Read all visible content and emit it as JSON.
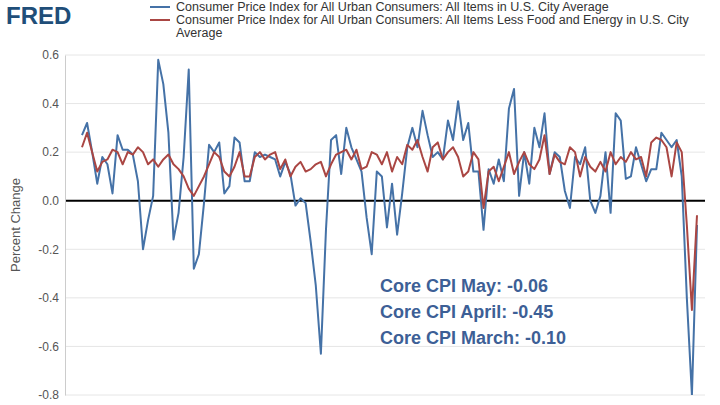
{
  "chart_data": {
    "type": "line",
    "source": "FRED",
    "y_label": "Percent Change",
    "annotations": [
      "Core CPI May: -0.06",
      "Core CPI April: -0.45",
      "Core CPI March: -0.10"
    ],
    "categories": [
      null,
      null,
      null,
      null,
      null,
      null,
      null,
      null,
      null,
      null,
      null,
      null,
      null,
      null,
      null,
      null,
      null,
      null,
      null,
      null,
      null,
      null,
      null,
      null,
      null,
      null,
      null,
      null,
      null,
      null,
      null,
      null,
      null,
      null,
      null,
      null,
      null,
      null,
      null,
      null,
      null,
      null,
      null,
      null,
      null,
      null,
      null,
      null,
      null,
      null,
      null,
      null,
      null,
      null,
      null,
      null,
      null,
      null,
      null,
      null,
      null,
      null,
      null,
      null,
      null,
      null,
      null,
      null,
      null,
      null,
      null,
      null,
      null,
      null,
      null,
      null,
      null,
      null,
      null,
      null,
      null,
      null,
      null,
      null,
      null,
      null,
      null,
      null,
      null,
      null,
      null,
      null,
      null,
      null,
      null,
      null,
      null,
      null,
      null,
      null,
      null,
      null,
      null,
      null,
      null,
      null,
      null,
      null,
      null,
      null,
      null,
      null,
      null,
      null,
      null,
      null,
      null,
      null,
      null,
      null,
      null,
      null
    ],
    "series": [
      {
        "name": "Consumer Price Index for All Urban Consumers: All Items in U.S. City Average",
        "color": "#4572a7",
        "values": [
          0.27,
          0.32,
          0.2,
          0.07,
          0.18,
          0.15,
          0.03,
          0.27,
          0.21,
          0.21,
          0.19,
          0.08,
          -0.2,
          -0.08,
          0.02,
          0.58,
          0.48,
          0.28,
          -0.16,
          -0.05,
          0.18,
          0.54,
          -0.28,
          -0.22,
          -0.01,
          0.23,
          0.2,
          0.24,
          0.03,
          0.06,
          0.26,
          0.24,
          0.08,
          0.08,
          0.2,
          0.18,
          0.19,
          0.18,
          0.17,
          0.1,
          0.16,
          0.11,
          -0.02,
          0.01,
          -0.01,
          -0.17,
          -0.35,
          -0.63,
          -0.12,
          0.25,
          0.27,
          0.11,
          0.3,
          0.22,
          0.17,
          0.12,
          -0.07,
          -0.22,
          0.12,
          0.1,
          -0.11,
          0.07,
          -0.14,
          0.03,
          0.22,
          0.3,
          0.22,
          0.37,
          0.27,
          0.18,
          0.2,
          0.17,
          0.33,
          0.25,
          0.41,
          0.25,
          0.32,
          0.12,
          0.12,
          -0.12,
          0.13,
          0.07,
          0.17,
          0.08,
          0.38,
          0.46,
          0.02,
          0.2,
          0.07,
          0.3,
          0.22,
          0.36,
          0.11,
          0.2,
          0.18,
          0.04,
          -0.03,
          0.18,
          0.15,
          0.22,
          0.0,
          -0.05,
          0.02,
          0.2,
          -0.05,
          0.36,
          0.33,
          0.09,
          0.1,
          0.22,
          0.15,
          0.08,
          0.13,
          0.13,
          0.28,
          0.25,
          0.22,
          0.25,
          0.1,
          -0.4,
          -0.8,
          -0.1
        ]
      },
      {
        "name": "Consumer Price Index for All Urban Consumers: All Items Less Food and Energy in U.S. City Average",
        "color": "#aa4643",
        "values": [
          0.22,
          0.28,
          0.2,
          0.12,
          0.16,
          0.17,
          0.21,
          0.2,
          0.15,
          0.2,
          0.19,
          0.22,
          0.2,
          0.15,
          0.17,
          0.14,
          0.17,
          0.19,
          0.15,
          0.13,
          0.1,
          0.05,
          0.02,
          0.06,
          0.1,
          0.15,
          0.2,
          0.18,
          0.12,
          0.1,
          0.14,
          0.2,
          0.1,
          0.1,
          0.18,
          0.2,
          0.17,
          0.19,
          0.2,
          0.13,
          0.17,
          0.1,
          0.14,
          0.16,
          0.12,
          0.13,
          0.15,
          0.16,
          0.1,
          0.15,
          0.19,
          0.2,
          0.21,
          0.17,
          0.21,
          0.13,
          0.14,
          0.2,
          0.19,
          0.15,
          0.2,
          0.12,
          0.18,
          0.15,
          0.23,
          0.21,
          0.25,
          0.18,
          0.12,
          0.22,
          0.24,
          0.17,
          0.2,
          0.22,
          0.18,
          0.1,
          0.12,
          0.2,
          0.17,
          -0.03,
          0.12,
          0.14,
          0.08,
          0.14,
          0.2,
          0.11,
          0.16,
          0.2,
          0.15,
          0.13,
          0.17,
          0.27,
          0.11,
          0.19,
          0.16,
          0.15,
          0.22,
          0.2,
          0.1,
          0.18,
          0.14,
          0.12,
          0.16,
          0.12,
          0.2,
          0.15,
          0.18,
          0.16,
          0.2,
          0.17,
          0.18,
          0.1,
          0.24,
          0.26,
          0.25,
          0.22,
          0.1,
          0.24,
          0.2,
          -0.1,
          -0.45,
          -0.06
        ]
      }
    ],
    "ylim": [
      -0.8,
      0.6
    ],
    "yticks": [
      -0.8,
      -0.6,
      -0.4,
      -0.2,
      {
        "value": 0,
        "label": "0.0"
      },
      0.2,
      0.4,
      0.6
    ],
    "grid": true,
    "tick_labels": "y"
  }
}
